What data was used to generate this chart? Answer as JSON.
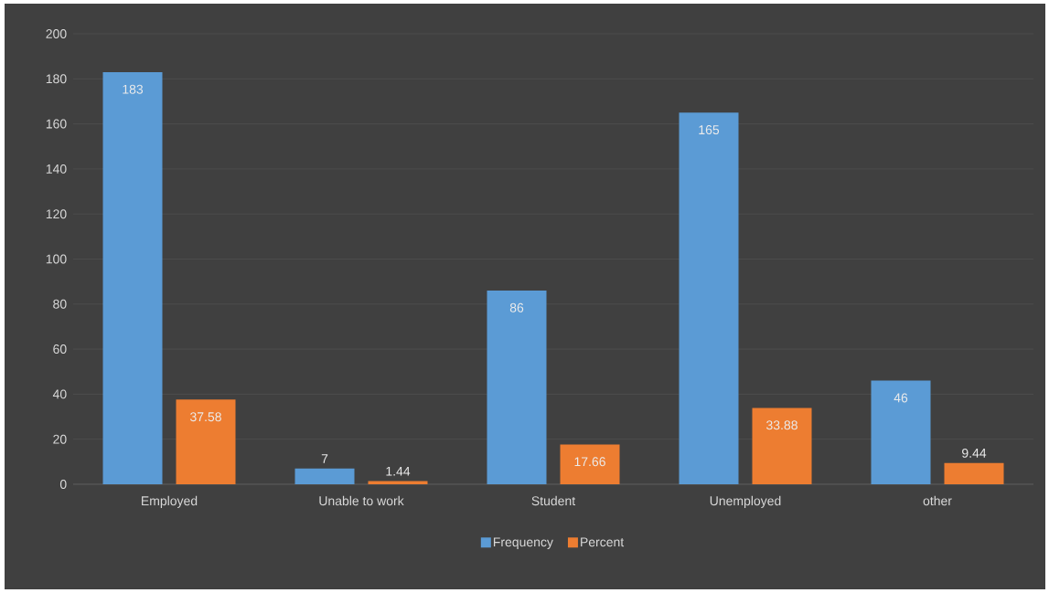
{
  "chart_data": {
    "type": "bar",
    "categories": [
      "Employed",
      "Unable to work",
      "Student",
      "Unemployed",
      "other"
    ],
    "series": [
      {
        "name": "Frequency",
        "color": "#5b9bd5",
        "values": [
          183,
          7,
          86,
          165,
          46
        ]
      },
      {
        "name": "Percent",
        "color": "#ed7d31",
        "values": [
          37.58,
          1.44,
          17.66,
          33.88,
          9.44
        ]
      }
    ],
    "ylim": [
      0,
      200
    ],
    "yticks": [
      0,
      20,
      40,
      60,
      80,
      100,
      120,
      140,
      160,
      180,
      200
    ],
    "grid": "y",
    "legend": "bottom",
    "data_labels": true
  }
}
